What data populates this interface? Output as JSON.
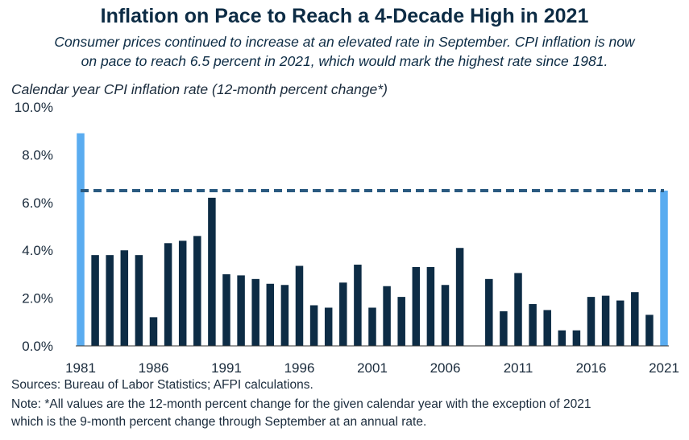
{
  "header": {
    "title": "Inflation on Pace to Reach a 4-Decade High in 2021",
    "subtitle_line1": "Consumer prices continued to increase at an elevated rate in September. CPI inflation is now",
    "subtitle_line2": "on pace to reach 6.5 percent in 2021, which would mark the highest rate since 1981."
  },
  "footer": {
    "source": "Sources: Bureau of Labor Statistics; AFPI calculations.",
    "note_line1": "Note: *All values are the 12-month percent change for the given calendar year with the exception of 2021",
    "note_line2": "which is the 9-month percent change through September at an annual rate."
  },
  "colors": {
    "bar_dark": "#0d2c45",
    "bar_highlight": "#5aacf0",
    "reference_line": "#2a5a80",
    "axis": "#333333"
  },
  "chart_data": {
    "type": "bar",
    "ylabel": "Calendar year CPI inflation rate (12-month percent change*)",
    "ylim": [
      0,
      10
    ],
    "yticks": [
      0,
      2,
      4,
      6,
      8,
      10
    ],
    "ytick_labels": [
      "0.0%",
      "2.0%",
      "4.0%",
      "6.0%",
      "8.0%",
      "10.0%"
    ],
    "xtick_labels": [
      "1981",
      "1986",
      "1991",
      "1996",
      "2001",
      "2006",
      "2011",
      "2016",
      "2021"
    ],
    "grid": false,
    "reference_line": {
      "value": 6.5,
      "style": "dashed"
    },
    "highlight_years": [
      1981,
      2021
    ],
    "categories": [
      1981,
      1982,
      1983,
      1984,
      1985,
      1986,
      1987,
      1988,
      1989,
      1990,
      1991,
      1992,
      1993,
      1994,
      1995,
      1996,
      1997,
      1998,
      1999,
      2000,
      2001,
      2002,
      2003,
      2004,
      2005,
      2006,
      2007,
      2008,
      2009,
      2010,
      2011,
      2012,
      2013,
      2014,
      2015,
      2016,
      2017,
      2018,
      2019,
      2020,
      2021
    ],
    "values": [
      8.9,
      3.8,
      3.8,
      4.0,
      3.8,
      1.2,
      4.3,
      4.4,
      4.6,
      6.2,
      3.0,
      2.95,
      2.8,
      2.6,
      2.55,
      3.35,
      1.7,
      1.6,
      2.65,
      3.4,
      1.6,
      2.5,
      2.05,
      3.3,
      3.3,
      2.55,
      4.1,
      0.0,
      2.8,
      1.45,
      3.05,
      1.75,
      1.5,
      0.65,
      0.65,
      2.05,
      2.1,
      1.9,
      2.25,
      1.3,
      6.5
    ]
  }
}
